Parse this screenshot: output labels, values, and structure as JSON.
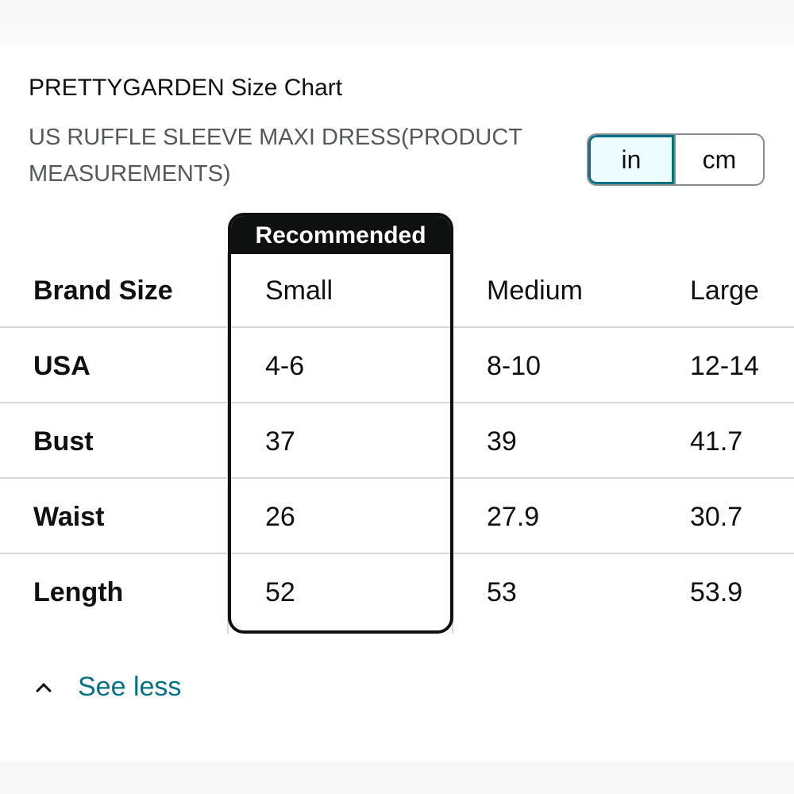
{
  "size_chart": {
    "title": "PRETTYGARDEN Size Chart",
    "subtitle": "US RUFFLE SLEEVE MAXI DRESS(PRODUCT MEASUREMENTS)",
    "unit_toggle": {
      "options": [
        "in",
        "cm"
      ],
      "selected": "in"
    },
    "recommended_label": "Recommended",
    "recommended_column": "Small",
    "rows": [
      {
        "label": "Brand Size",
        "values": [
          "Small",
          "Medium",
          "Large"
        ]
      },
      {
        "label": "USA",
        "values": [
          "4-6",
          "8-10",
          "12-14"
        ]
      },
      {
        "label": "Bust",
        "values": [
          "37",
          "39",
          "41.7"
        ]
      },
      {
        "label": "Waist",
        "values": [
          "26",
          "27.9",
          "30.7"
        ]
      },
      {
        "label": "Length",
        "values": [
          "52",
          "53",
          "53.9"
        ]
      }
    ]
  },
  "see_less": {
    "label": "See less",
    "icon": "chevron-up-icon"
  },
  "colors": {
    "link": "#007185",
    "selected_fill": "#edfdff",
    "text_primary": "#0f1111",
    "text_secondary": "#565959",
    "divider": "#d5d9d9"
  }
}
